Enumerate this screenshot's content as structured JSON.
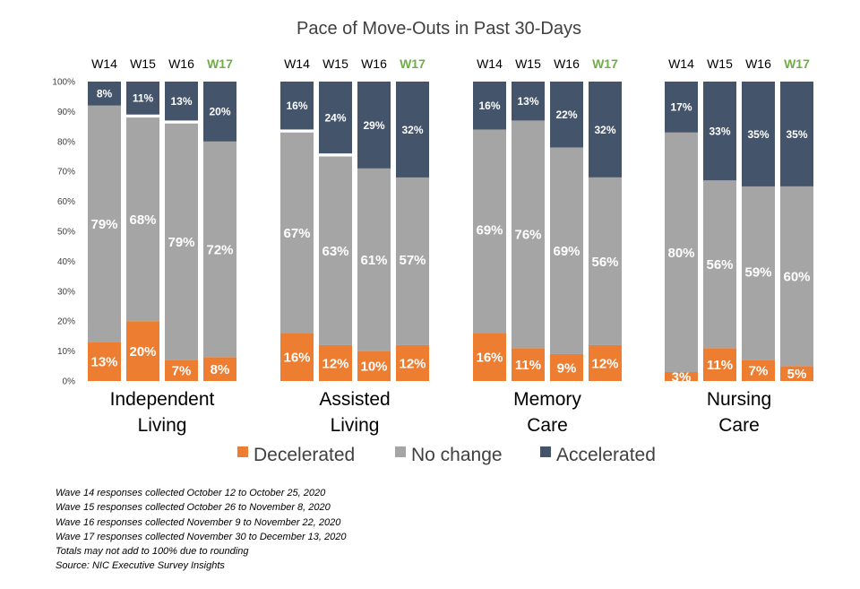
{
  "chart_data": {
    "type": "bar",
    "stacked": true,
    "title": "Pace of Move-Outs in Past 30-Days",
    "ylim": [
      0,
      100
    ],
    "yticks": [
      "0%",
      "10%",
      "20%",
      "30%",
      "40%",
      "50%",
      "60%",
      "70%",
      "80%",
      "90%",
      "100%"
    ],
    "waves": [
      "W14",
      "W15",
      "W16",
      "W17"
    ],
    "highlight_wave": "W17",
    "groups": [
      {
        "name": "Independent Living",
        "lines": [
          "Independent",
          "Living"
        ],
        "decelerated": [
          13,
          20,
          7,
          8
        ],
        "no_change": [
          79,
          68,
          79,
          72
        ],
        "accelerated": [
          8,
          11,
          13,
          20
        ]
      },
      {
        "name": "Assisted Living",
        "lines": [
          "Assisted",
          "Living"
        ],
        "decelerated": [
          16,
          12,
          10,
          12
        ],
        "no_change": [
          67,
          63,
          61,
          57
        ],
        "accelerated": [
          16,
          24,
          29,
          32
        ]
      },
      {
        "name": "Memory Care",
        "lines": [
          "Memory",
          "Care"
        ],
        "decelerated": [
          16,
          11,
          9,
          12
        ],
        "no_change": [
          69,
          76,
          69,
          56
        ],
        "accelerated": [
          16,
          13,
          22,
          32
        ]
      },
      {
        "name": "Nursing Care",
        "lines": [
          "Nursing",
          "Care"
        ],
        "decelerated": [
          3,
          11,
          7,
          5
        ],
        "no_change": [
          80,
          56,
          59,
          60
        ],
        "accelerated": [
          17,
          33,
          35,
          35
        ]
      }
    ],
    "series": [
      {
        "key": "decelerated",
        "name": "Decelerated",
        "color": "#ed7d31"
      },
      {
        "key": "no_change",
        "name": "No change",
        "color": "#a5a5a5"
      },
      {
        "key": "accelerated",
        "name": "Accelerated",
        "color": "#44546a"
      }
    ],
    "legend_position": "bottom",
    "grid": false
  },
  "notes": [
    "Wave 14 responses collected October 12 to October 25, 2020",
    "Wave 15 responses collected October 26 to November 8, 2020",
    "Wave 16 responses collected November 9 to November 22, 2020",
    "Wave 17 responses collected November 30 to December 13, 2020",
    "Totals may not add to 100% due to rounding",
    "Source: NIC Executive Survey Insights"
  ]
}
